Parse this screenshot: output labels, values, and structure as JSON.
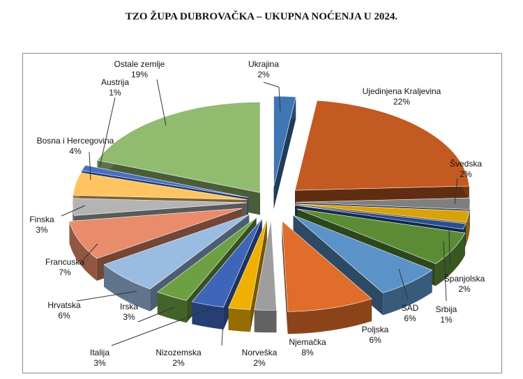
{
  "title": "TZO ŽUPA DUBROVAČKA – UKUPNA NOĆENJA U 2024.",
  "chart_data": {
    "type": "pie",
    "title": "TZO ŽUPA DUBROVAČKA – UKUPNA NOĆENJA U 2024.",
    "style": "3d-exploded",
    "slices": [
      {
        "name": "Ukrajina",
        "value": 2,
        "label": "2%",
        "color": "#3f77b4"
      },
      {
        "name": "Ujedinjena Kraljevina",
        "value": 22,
        "label": "22%",
        "color": "#c25a21"
      },
      {
        "name": "Švedska",
        "value": 2,
        "label": "2%",
        "color": "#7f7f7f"
      },
      {
        "name": "Španjolska",
        "value": 2,
        "label": "2%",
        "color": "#d9a20c"
      },
      {
        "name": "Srbija",
        "value": 1,
        "label": "1%",
        "color": "#284f91"
      },
      {
        "name": "SAD",
        "value": 6,
        "label": "6%",
        "color": "#5b8c35"
      },
      {
        "name": "Poljska",
        "value": 6,
        "label": "6%",
        "color": "#5b92c8"
      },
      {
        "name": "Njemačka",
        "value": 8,
        "label": "8%",
        "color": "#e06d2a"
      },
      {
        "name": "Norveška",
        "value": 2,
        "label": "2%",
        "color": "#9e9e9e"
      },
      {
        "name": "Nizozemska",
        "value": 2,
        "label": "2%",
        "color": "#f0b000"
      },
      {
        "name": "Italija",
        "value": 3,
        "label": "3%",
        "color": "#3d65b8"
      },
      {
        "name": "Irska",
        "value": 3,
        "label": "3%",
        "color": "#6ca043"
      },
      {
        "name": "Hrvatska",
        "value": 6,
        "label": "6%",
        "color": "#9bbce2"
      },
      {
        "name": "Francuska",
        "value": 7,
        "label": "7%",
        "color": "#e88c6b"
      },
      {
        "name": "Finska",
        "value": 3,
        "label": "3%",
        "color": "#b4b4b4"
      },
      {
        "name": "Bosna i Hercegovina",
        "value": 4,
        "label": "4%",
        "color": "#ffc462"
      },
      {
        "name": "Austrija",
        "value": 1,
        "label": "1%",
        "color": "#4a6fc2"
      },
      {
        "name": "Ostale zemlje",
        "value": 19,
        "label": "19%",
        "color": "#91bb6f"
      }
    ]
  }
}
